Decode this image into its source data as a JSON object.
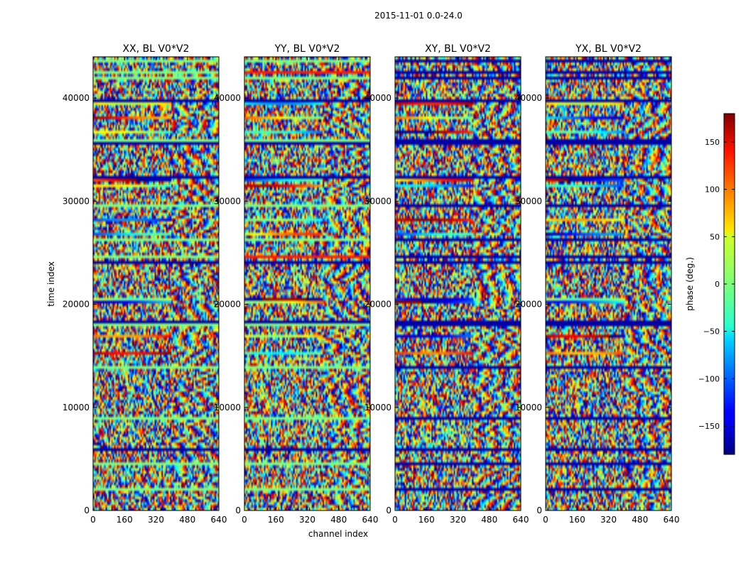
{
  "chart_data": {
    "type": "heatmap",
    "suptitle": "2015-11-01 0.0-24.0",
    "xlabel": "channel index",
    "ylabel": "time index",
    "xlim": [
      0,
      640
    ],
    "ylim": [
      0,
      44000
    ],
    "xticks": [
      0,
      160,
      320,
      480,
      640
    ],
    "yticks": [
      0,
      10000,
      20000,
      30000,
      40000
    ],
    "panels": [
      {
        "title": "XX, BL V0*V2",
        "pol": "XX"
      },
      {
        "title": "YY, BL V0*V2",
        "pol": "YY"
      },
      {
        "title": "XY, BL V0*V2",
        "pol": "XY"
      },
      {
        "title": "YX, BL V0*V2",
        "pol": "YX"
      }
    ],
    "colorbar": {
      "label": "phase (deg.)",
      "range": [
        -180,
        180
      ],
      "ticks": [
        -150,
        -100,
        -50,
        0,
        50,
        100,
        150
      ],
      "colormap": "jet"
    },
    "values_description": "phase per (time index, channel index); noisy fringe pattern"
  }
}
